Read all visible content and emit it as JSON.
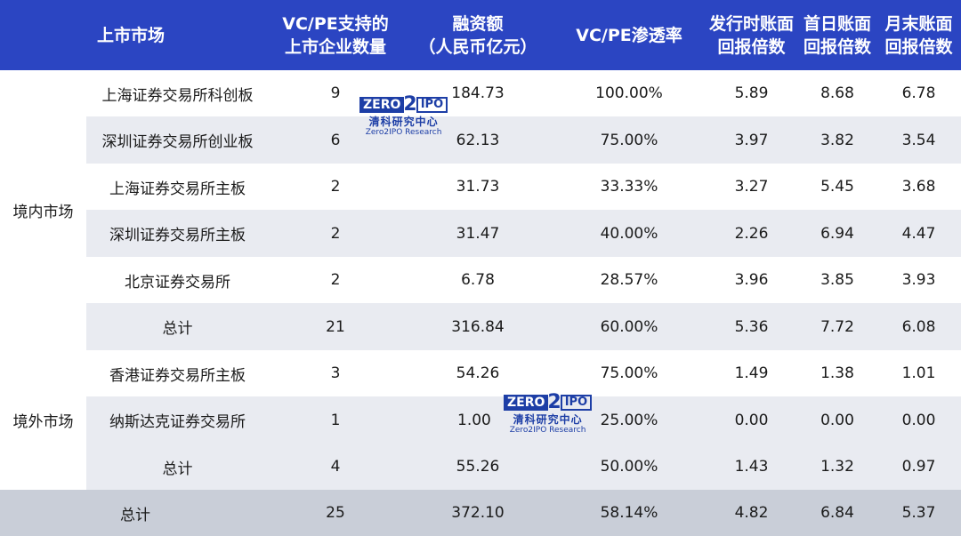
{
  "header": {
    "market": "上市市场",
    "count_l1": "VC/PE支持的",
    "count_l2": "上市企业数量",
    "amount_l1": "融资额",
    "amount_l2": "（人民币亿元）",
    "penetration": "VC/PE渗透率",
    "issue_l1": "发行时账面",
    "issue_l2": "回报倍数",
    "first_l1": "首日账面",
    "first_l2": "回报倍数",
    "month_l1": "月末账面",
    "month_l2": "回报倍数"
  },
  "groups": {
    "domestic": "境内市场",
    "overseas": "境外市场"
  },
  "rows": [
    {
      "name": "上海证券交易所科创板",
      "count": "9",
      "amount": "184.73",
      "pen": "100.00%",
      "issue": "5.89",
      "first": "8.68",
      "month": "6.78"
    },
    {
      "name": "深圳证券交易所创业板",
      "count": "6",
      "amount": "62.13",
      "pen": "75.00%",
      "issue": "3.97",
      "first": "3.82",
      "month": "3.54"
    },
    {
      "name": "上海证券交易所主板",
      "count": "2",
      "amount": "31.73",
      "pen": "33.33%",
      "issue": "3.27",
      "first": "5.45",
      "month": "3.68"
    },
    {
      "name": "深圳证券交易所主板",
      "count": "2",
      "amount": "31.47",
      "pen": "40.00%",
      "issue": "2.26",
      "first": "6.94",
      "month": "4.47"
    },
    {
      "name": "北京证券交易所",
      "count": "2",
      "amount": "6.78",
      "pen": "28.57%",
      "issue": "3.96",
      "first": "3.85",
      "month": "3.93"
    },
    {
      "name": "总计",
      "count": "21",
      "amount": "316.84",
      "pen": "60.00%",
      "issue": "5.36",
      "first": "7.72",
      "month": "6.08"
    },
    {
      "name": "香港证券交易所主板",
      "count": "3",
      "amount": "54.26",
      "pen": "75.00%",
      "issue": "1.49",
      "first": "1.38",
      "month": "1.01"
    },
    {
      "name": "纳斯达克证券交易所",
      "count": "1",
      "amount": "1.00",
      "pen": "25.00%",
      "issue": "0.00",
      "first": "0.00",
      "month": "0.00"
    },
    {
      "name": "总计",
      "count": "4",
      "amount": "55.26",
      "pen": "50.00%",
      "issue": "1.43",
      "first": "1.32",
      "month": "0.97"
    },
    {
      "name": "总计",
      "count": "25",
      "amount": "372.10",
      "pen": "58.14%",
      "issue": "4.82",
      "first": "6.84",
      "month": "5.37"
    }
  ],
  "watermark": {
    "zero": "ZERO",
    "two": "2",
    "ipo": "IPO",
    "cn": "清科研究中心",
    "en": "Zero2IPO Research"
  },
  "colors": {
    "header_bg": "#2b45c2",
    "shade_bg": "#e9ebf1",
    "grand_bg": "#c9ced8",
    "logo": "#1d3ea6"
  }
}
